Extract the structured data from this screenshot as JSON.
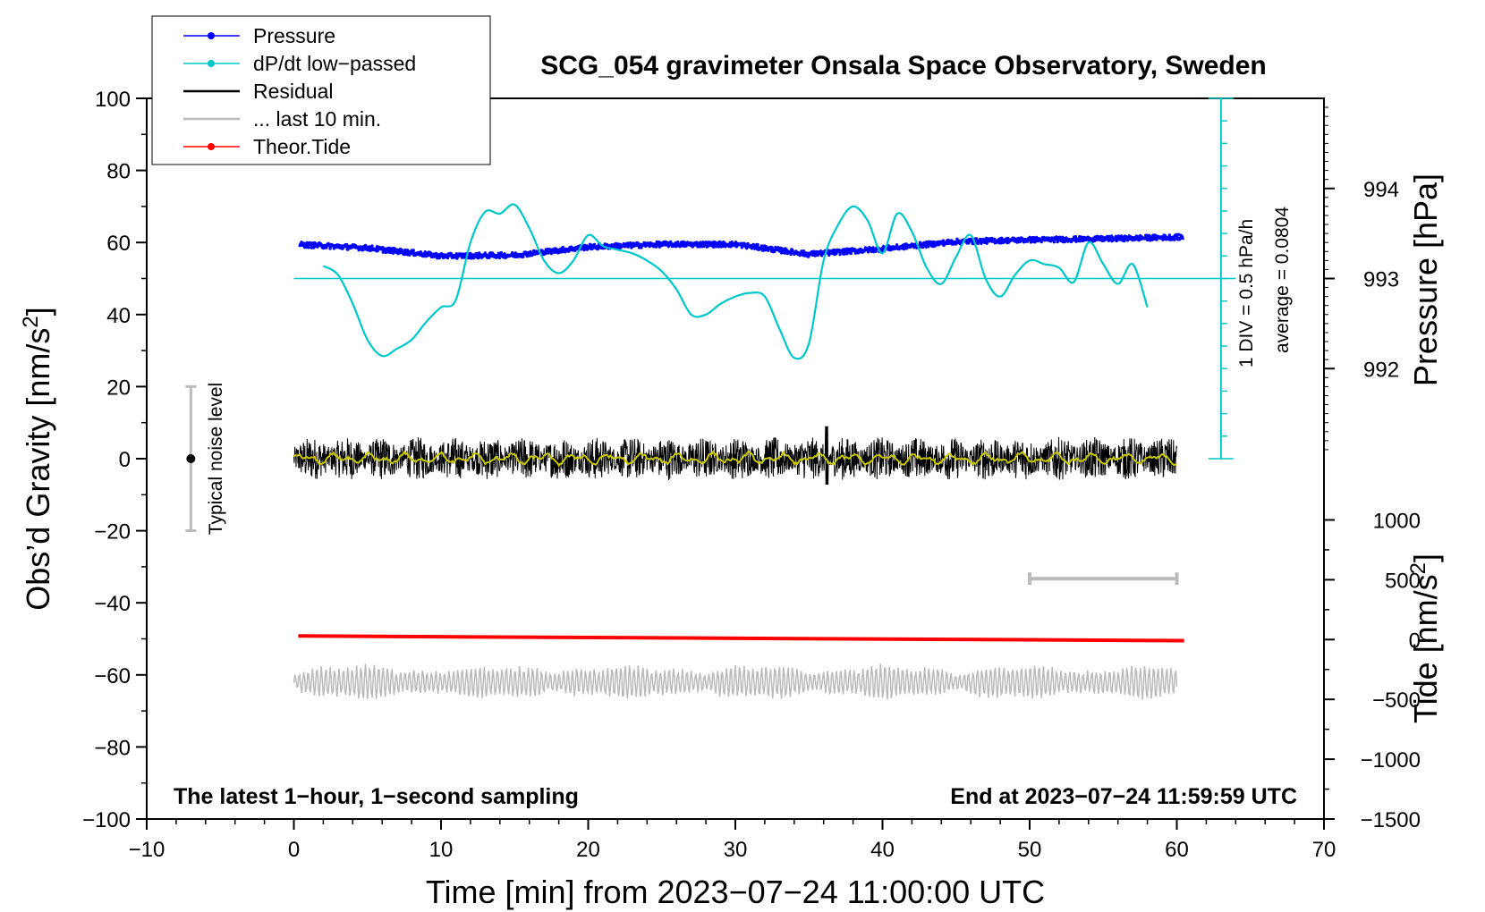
{
  "chart_data": {
    "type": "line",
    "title": "SCG_054 gravimeter Onsala Space Observatory, Sweden",
    "xlabel": "Time [min] from 2023−07−24 11:00:00 UTC",
    "ylabel_main": "Obs’d Gravity [nm/s",
    "ylabel_main_sup": "2",
    "ylabel_main_end": "]",
    "ylabel_pressure": "Pressure [hPa]",
    "ylabel_tide": "Tide [nm/s",
    "ylabel_tide_sup": "2",
    "ylabel_tide_end": "]",
    "xlim": [
      -10,
      70
    ],
    "ylim": [
      -100,
      100
    ],
    "x_ticks": [
      -10,
      0,
      10,
      20,
      30,
      40,
      50,
      60,
      70
    ],
    "x_tick_labels": [
      "−10",
      "0",
      "10",
      "20",
      "30",
      "40",
      "50",
      "60",
      "70"
    ],
    "y_ticks": [
      -100,
      -80,
      -60,
      -40,
      -20,
      0,
      20,
      40,
      60,
      80,
      100
    ],
    "y_tick_labels": [
      "−100",
      "−80",
      "−60",
      "−40",
      "−20",
      "0",
      "20",
      "40",
      "60",
      "80",
      "100"
    ],
    "pressure_axis": {
      "ticks": [
        992,
        993,
        994
      ],
      "tick_labels": [
        "992",
        "993",
        "994"
      ],
      "value_at_main_y": {
        "993": 50,
        "994": 75
      }
    },
    "tide_axis": {
      "ticks": [
        -1500,
        -1000,
        -500,
        0,
        500,
        1000
      ],
      "tick_labels": [
        "−1500",
        "−1000",
        "−500",
        "0",
        "500",
        "1000"
      ],
      "value_at_main_y": {
        "-1500": -100,
        "1000": -17
      }
    },
    "dpdt_scale": {
      "label": "1 DIV = 0.5 hPa/h",
      "average_label": "average = 0.0804",
      "x": 63,
      "range_main_y": [
        0,
        100
      ],
      "divisions": 16,
      "zero_main_y": 50
    },
    "noise_bar": {
      "label": "Typical noise level",
      "x": -7,
      "y": 0,
      "ylow": -20,
      "yhigh": 20
    },
    "ten_min_bar": {
      "x_start": 50,
      "x_end": 60,
      "y": -33.3
    },
    "legend": [
      {
        "label": "Pressure",
        "color": "#0000ff",
        "marker": "dot"
      },
      {
        "label": "dP/dt low−passed",
        "color": "#00c8c8",
        "marker": "dot"
      },
      {
        "label": "Residual",
        "color": "#000000",
        "marker": "none"
      },
      {
        "label": "... last 10 min.",
        "color": "#bbbbbb",
        "marker": "none"
      },
      {
        "label": "Theor.Tide",
        "color": "#ff0000",
        "marker": "dot"
      }
    ],
    "series": [
      {
        "name": "Pressure",
        "color": "#0000ff",
        "axis": "pressure",
        "x": [
          0,
          5,
          10,
          15,
          20,
          25,
          30,
          35,
          40,
          45,
          50,
          55,
          60
        ],
        "y": [
          993.38,
          993.34,
          993.25,
          993.26,
          993.35,
          993.38,
          993.38,
          993.27,
          993.33,
          993.41,
          993.43,
          993.44,
          993.46
        ]
      },
      {
        "name": "dP/dt low−passed",
        "color": "#00c8c8",
        "axis": "main_y",
        "x": [
          2,
          3,
          4,
          5,
          6,
          7,
          8,
          9,
          10,
          11,
          12,
          13,
          14,
          15,
          16,
          17,
          18,
          19,
          20,
          21,
          22,
          23,
          24,
          25,
          26,
          27,
          28,
          29,
          30,
          31,
          32,
          33,
          34,
          35,
          36,
          37,
          38,
          39,
          40,
          41,
          42,
          43,
          44,
          45,
          46,
          47,
          48,
          49,
          50,
          51,
          52,
          53,
          54,
          55,
          56,
          57,
          58
        ],
        "y": [
          53.5,
          51,
          43,
          33,
          28.5,
          30.5,
          33,
          38,
          42,
          44,
          60,
          68.5,
          68,
          70.5,
          64,
          55,
          51.5,
          55,
          62,
          59,
          58,
          57,
          55,
          52,
          47,
          40,
          40,
          43,
          45,
          46,
          45,
          36,
          28,
          32,
          55,
          65,
          70,
          66,
          57,
          68,
          63,
          53,
          48.5,
          56,
          62,
          50,
          45,
          51,
          55,
          54,
          53,
          49,
          60,
          54,
          48.5,
          54,
          42
        ]
      },
      {
        "name": "Residual",
        "color": "#000000",
        "axis": "main_y",
        "x_range": [
          0,
          60
        ],
        "y_center": 0,
        "amplitude": 6,
        "max_spike": 9
      },
      {
        "name": "Residual smoothed",
        "color": "#c8c800",
        "axis": "main_y",
        "x_range": [
          0,
          60
        ],
        "y_center": 0
      },
      {
        "name": "Theor.Tide",
        "color": "#ff0000",
        "axis": "main_y",
        "x": [
          0.3,
          60.5
        ],
        "y": [
          -49.2,
          -50.5
        ]
      },
      {
        "name": "... last 10 min.",
        "color": "#bbbbbb",
        "axis": "main_y",
        "x_range": [
          0,
          60
        ],
        "y_center": -62,
        "amplitude": 3.5
      }
    ],
    "annotations": {
      "bottom_left": "The latest 1−hour, 1−second sampling",
      "bottom_right": "End at 2023−07−24 11:59:59 UTC"
    }
  }
}
